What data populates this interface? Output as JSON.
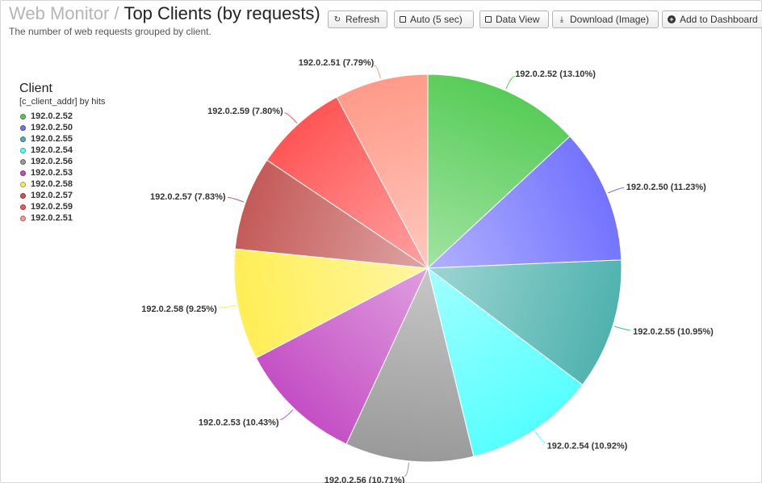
{
  "header": {
    "breadcrumb": "Web Monitor",
    "separator": "/",
    "title": "Top Clients (by requests)",
    "subtitle": "The number of web requests grouped by client."
  },
  "toolbar": {
    "refresh": "Refresh",
    "auto": "Auto (5 sec)",
    "data_view": "Data View",
    "download": "Download (Image)",
    "add_dashboard": "Add to Dashboard"
  },
  "legend": {
    "title": "Client",
    "subtitle": "[c_client_addr] by hits"
  },
  "chart_data": {
    "type": "pie",
    "slices": [
      {
        "name": "192.0.2.52",
        "value": 13.1,
        "label": "192.0.2.52 (13.10%)",
        "color": "#56cc56"
      },
      {
        "name": "192.0.2.50",
        "value": 11.23,
        "label": "192.0.2.50 (11.23%)",
        "color": "#7272ff"
      },
      {
        "name": "192.0.2.55",
        "value": 10.95,
        "label": "192.0.2.55 (10.95%)",
        "color": "#4fb2ae"
      },
      {
        "name": "192.0.2.54",
        "value": 10.92,
        "label": "192.0.2.54 (10.92%)",
        "color": "#55ffff"
      },
      {
        "name": "192.0.2.56",
        "value": 10.71,
        "label": "192.0.2.56 (10.71%)",
        "color": "#999999"
      },
      {
        "name": "192.0.2.53",
        "value": 10.43,
        "label": "192.0.2.53 (10.43%)",
        "color": "#c44ec4"
      },
      {
        "name": "192.0.2.58",
        "value": 9.25,
        "label": "192.0.2.58 (9.25%)",
        "color": "#ffee55"
      },
      {
        "name": "192.0.2.57",
        "value": 7.83,
        "label": "192.0.2.57 (7.83%)",
        "color": "#c35a58"
      },
      {
        "name": "192.0.2.59",
        "value": 7.8,
        "label": "192.0.2.59 (7.80%)",
        "color": "#ff5555"
      },
      {
        "name": "192.0.2.51",
        "value": 7.79,
        "label": "192.0.2.51 (7.79%)",
        "color": "#ff9a88"
      }
    ]
  }
}
